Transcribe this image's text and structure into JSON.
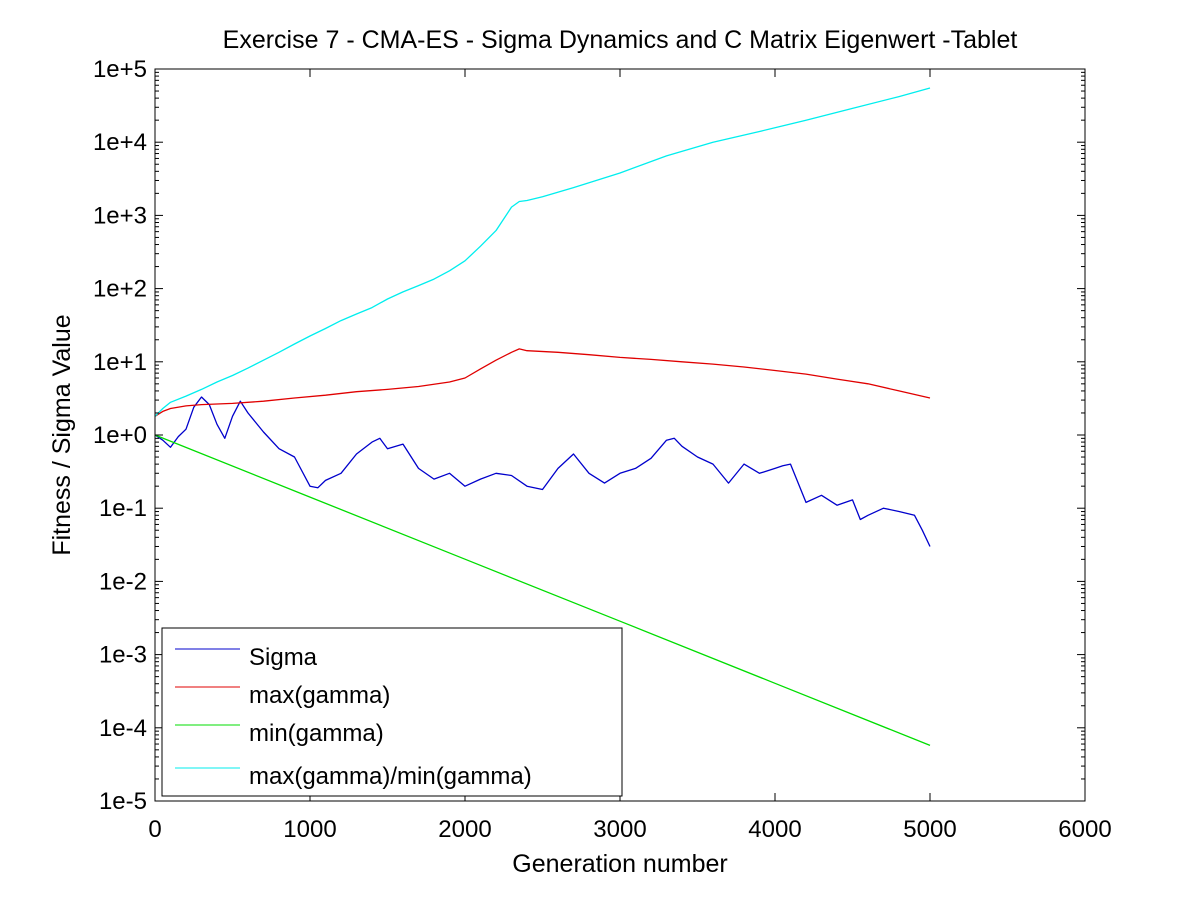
{
  "chart_data": {
    "type": "line",
    "title": "Exercise 7 - CMA-ES - Sigma Dynamics and C Matrix Eigenwert -Tablet",
    "xlabel": "Generation number",
    "ylabel": "Fitness / Sigma Value",
    "xlim": [
      0,
      6000
    ],
    "ylim": [
      1e-05,
      100000.0
    ],
    "yscale": "log",
    "grid": false,
    "legend_position": "bottom-left",
    "x_ticks": [
      0,
      1000,
      2000,
      3000,
      4000,
      5000,
      6000
    ],
    "x_tick_labels": [
      "0",
      "1000",
      "2000",
      "3000",
      "4000",
      "5000",
      "6000"
    ],
    "y_ticks": [
      1e-05,
      0.0001,
      0.001,
      0.01,
      0.1,
      1.0,
      10.0,
      100.0,
      1000.0,
      10000.0,
      100000.0
    ],
    "y_tick_labels": [
      "1e-5",
      "1e-4",
      "1e-3",
      "1e-2",
      "1e-1",
      "1e+0",
      "1e+1",
      "1e+2",
      "1e+3",
      "1e+4",
      "1e+5"
    ],
    "series": [
      {
        "name": "Sigma",
        "color": "#0000cc",
        "x": [
          0,
          50,
          100,
          150,
          200,
          250,
          300,
          350,
          400,
          450,
          500,
          550,
          600,
          700,
          800,
          900,
          1000,
          1050,
          1100,
          1200,
          1300,
          1400,
          1450,
          1500,
          1600,
          1700,
          1800,
          1900,
          2000,
          2100,
          2200,
          2300,
          2400,
          2500,
          2600,
          2700,
          2800,
          2900,
          3000,
          3100,
          3200,
          3300,
          3350,
          3400,
          3500,
          3600,
          3700,
          3800,
          3900,
          4000,
          4050,
          4100,
          4200,
          4300,
          4400,
          4500,
          4550,
          4600,
          4700,
          4800,
          4900,
          4950,
          5000
        ],
        "y": [
          1.0,
          0.85,
          0.68,
          0.95,
          1.2,
          2.4,
          3.3,
          2.6,
          1.4,
          0.9,
          1.8,
          2.9,
          2.0,
          1.1,
          0.65,
          0.5,
          0.2,
          0.19,
          0.24,
          0.3,
          0.55,
          0.8,
          0.9,
          0.65,
          0.75,
          0.35,
          0.25,
          0.3,
          0.2,
          0.25,
          0.3,
          0.28,
          0.2,
          0.18,
          0.35,
          0.55,
          0.3,
          0.22,
          0.3,
          0.35,
          0.48,
          0.85,
          0.9,
          0.7,
          0.5,
          0.4,
          0.22,
          0.4,
          0.3,
          0.35,
          0.38,
          0.4,
          0.12,
          0.15,
          0.11,
          0.13,
          0.07,
          0.08,
          0.1,
          0.09,
          0.08,
          0.05,
          0.03
        ]
      },
      {
        "name": "max(gamma)",
        "color": "#e00000",
        "x": [
          0,
          50,
          100,
          200,
          300,
          500,
          700,
          900,
          1100,
          1300,
          1500,
          1700,
          1900,
          2000,
          2100,
          2200,
          2300,
          2350,
          2400,
          2600,
          2800,
          3000,
          3200,
          3400,
          3600,
          3800,
          4000,
          4200,
          4400,
          4600,
          4800,
          5000
        ],
        "y": [
          1.8,
          2.1,
          2.3,
          2.5,
          2.6,
          2.7,
          2.9,
          3.2,
          3.5,
          3.9,
          4.2,
          4.6,
          5.3,
          6.0,
          8.0,
          10.5,
          13.5,
          15.0,
          14.2,
          13.5,
          12.5,
          11.5,
          10.8,
          10.0,
          9.3,
          8.5,
          7.6,
          6.8,
          5.8,
          5.0,
          4.0,
          3.2
        ]
      },
      {
        "name": "min(gamma)",
        "color": "#00dd00",
        "x": [
          0,
          1000,
          2000,
          3000,
          4000,
          5000
        ],
        "y": [
          1.0,
          0.142,
          0.0201,
          0.00286,
          0.000405,
          5.75e-05
        ]
      },
      {
        "name": "max(gamma)/min(gamma)",
        "color": "#00eeee",
        "x": [
          0,
          50,
          100,
          200,
          300,
          400,
          500,
          600,
          700,
          800,
          900,
          1000,
          1100,
          1200,
          1300,
          1400,
          1500,
          1600,
          1700,
          1800,
          1900,
          2000,
          2100,
          2200,
          2300,
          2350,
          2400,
          2500,
          2700,
          3000,
          3300,
          3600,
          3900,
          4200,
          4500,
          4800,
          5000
        ],
        "y": [
          1.8,
          2.3,
          2.8,
          3.4,
          4.2,
          5.3,
          6.5,
          8.2,
          10.5,
          13.5,
          17.5,
          22.5,
          28.5,
          36.5,
          45.0,
          55.0,
          72.0,
          90.0,
          110.0,
          135.0,
          175.0,
          240.0,
          380.0,
          620.0,
          1300.0,
          1550.0,
          1600.0,
          1800.0,
          2400.0,
          3800.0,
          6500.0,
          10000.0,
          14000.0,
          20000.0,
          29000.0,
          42000.0,
          55000.0
        ]
      }
    ]
  }
}
